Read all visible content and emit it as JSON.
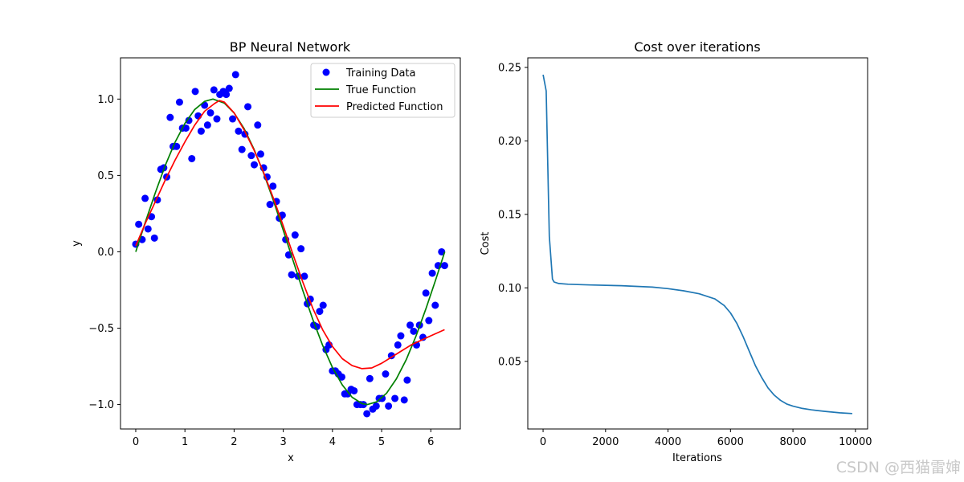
{
  "chart_data": [
    {
      "type": "scatter+line",
      "title": "BP Neural Network",
      "xlabel": "x",
      "ylabel": "y",
      "xlim": [
        -0.31,
        6.6
      ],
      "ylim": [
        -1.16,
        1.27
      ],
      "xticks": [
        0,
        1,
        2,
        3,
        4,
        5,
        6
      ],
      "yticks": [
        -1.0,
        -0.5,
        0.0,
        0.5,
        1.0
      ],
      "ytick_labels": [
        "−1.0",
        "−0.5",
        "0.0",
        "0.5",
        "1.0"
      ],
      "legend": {
        "position": "top-right",
        "entries": [
          "Training Data",
          "True Function",
          "Predicted Function"
        ]
      },
      "series": [
        {
          "name": "Training Data",
          "kind": "scatter",
          "color": "#0000ff",
          "points": [
            [
              0.0,
              0.05
            ],
            [
              0.06,
              0.18
            ],
            [
              0.13,
              0.08
            ],
            [
              0.19,
              0.35
            ],
            [
              0.25,
              0.15
            ],
            [
              0.32,
              0.23
            ],
            [
              0.38,
              0.09
            ],
            [
              0.44,
              0.34
            ],
            [
              0.51,
              0.54
            ],
            [
              0.57,
              0.55
            ],
            [
              0.63,
              0.49
            ],
            [
              0.7,
              0.88
            ],
            [
              0.76,
              0.69
            ],
            [
              0.83,
              0.69
            ],
            [
              0.89,
              0.98
            ],
            [
              0.95,
              0.81
            ],
            [
              1.02,
              0.81
            ],
            [
              1.08,
              0.86
            ],
            [
              1.14,
              0.61
            ],
            [
              1.21,
              1.05
            ],
            [
              1.27,
              0.89
            ],
            [
              1.33,
              0.79
            ],
            [
              1.4,
              0.96
            ],
            [
              1.46,
              0.83
            ],
            [
              1.52,
              0.91
            ],
            [
              1.59,
              1.06
            ],
            [
              1.65,
              0.87
            ],
            [
              1.71,
              1.03
            ],
            [
              1.78,
              1.05
            ],
            [
              1.84,
              1.03
            ],
            [
              1.9,
              1.07
            ],
            [
              1.97,
              0.87
            ],
            [
              2.03,
              1.16
            ],
            [
              2.09,
              0.79
            ],
            [
              2.16,
              0.67
            ],
            [
              2.22,
              0.77
            ],
            [
              2.28,
              0.95
            ],
            [
              2.35,
              0.63
            ],
            [
              2.41,
              0.57
            ],
            [
              2.48,
              0.83
            ],
            [
              2.54,
              0.64
            ],
            [
              2.6,
              0.55
            ],
            [
              2.67,
              0.49
            ],
            [
              2.73,
              0.31
            ],
            [
              2.79,
              0.43
            ],
            [
              2.86,
              0.33
            ],
            [
              2.92,
              0.22
            ],
            [
              2.98,
              0.24
            ],
            [
              3.05,
              0.08
            ],
            [
              3.11,
              -0.02
            ],
            [
              3.17,
              -0.15
            ],
            [
              3.24,
              0.11
            ],
            [
              3.3,
              -0.16
            ],
            [
              3.36,
              0.02
            ],
            [
              3.43,
              -0.16
            ],
            [
              3.49,
              -0.34
            ],
            [
              3.55,
              -0.31
            ],
            [
              3.62,
              -0.48
            ],
            [
              3.68,
              -0.49
            ],
            [
              3.74,
              -0.39
            ],
            [
              3.81,
              -0.35
            ],
            [
              3.87,
              -0.64
            ],
            [
              3.93,
              -0.61
            ],
            [
              4.0,
              -0.78
            ],
            [
              4.06,
              -0.78
            ],
            [
              4.12,
              -0.8
            ],
            [
              4.19,
              -0.82
            ],
            [
              4.25,
              -0.93
            ],
            [
              4.31,
              -0.93
            ],
            [
              4.38,
              -0.9
            ],
            [
              4.44,
              -0.91
            ],
            [
              4.5,
              -1.0
            ],
            [
              4.57,
              -1.0
            ],
            [
              4.63,
              -1.0
            ],
            [
              4.7,
              -1.06
            ],
            [
              4.76,
              -0.83
            ],
            [
              4.82,
              -1.03
            ],
            [
              4.89,
              -1.01
            ],
            [
              4.95,
              -0.96
            ],
            [
              5.01,
              -0.96
            ],
            [
              5.08,
              -0.8
            ],
            [
              5.14,
              -1.01
            ],
            [
              5.2,
              -0.68
            ],
            [
              5.27,
              -0.96
            ],
            [
              5.33,
              -0.61
            ],
            [
              5.39,
              -0.55
            ],
            [
              5.46,
              -0.97
            ],
            [
              5.52,
              -0.84
            ],
            [
              5.58,
              -0.48
            ],
            [
              5.65,
              -0.52
            ],
            [
              5.71,
              -0.61
            ],
            [
              5.77,
              -0.48
            ],
            [
              5.84,
              -0.56
            ],
            [
              5.9,
              -0.27
            ],
            [
              5.96,
              -0.45
            ],
            [
              6.03,
              -0.14
            ],
            [
              6.09,
              -0.35
            ],
            [
              6.15,
              -0.09
            ],
            [
              6.22,
              0.0
            ],
            [
              6.28,
              -0.09
            ]
          ]
        },
        {
          "name": "True Function",
          "kind": "line",
          "color": "#008000",
          "x": [
            0,
            0.2,
            0.4,
            0.6,
            0.8,
            1.0,
            1.2,
            1.4,
            1.571,
            1.8,
            2.0,
            2.2,
            2.4,
            2.6,
            2.8,
            3.0,
            3.142,
            3.4,
            3.6,
            3.8,
            4.0,
            4.2,
            4.4,
            4.6,
            4.712,
            4.9,
            5.1,
            5.3,
            5.5,
            5.7,
            5.9,
            6.1,
            6.283
          ],
          "y": [
            0,
            0.199,
            0.389,
            0.565,
            0.717,
            0.841,
            0.932,
            0.985,
            1.0,
            0.974,
            0.909,
            0.808,
            0.675,
            0.516,
            0.335,
            0.141,
            0.0,
            -0.256,
            -0.443,
            -0.612,
            -0.757,
            -0.872,
            -0.952,
            -0.994,
            -1.0,
            -0.982,
            -0.926,
            -0.832,
            -0.706,
            -0.551,
            -0.374,
            -0.182,
            0.0
          ]
        },
        {
          "name": "Predicted Function",
          "kind": "line",
          "color": "#ff0000",
          "x": [
            0,
            0.2,
            0.4,
            0.6,
            0.8,
            1.0,
            1.2,
            1.4,
            1.6,
            1.7,
            1.8,
            2.0,
            2.2,
            2.4,
            2.6,
            2.8,
            3.0,
            3.2,
            3.4,
            3.6,
            3.8,
            4.0,
            4.2,
            4.4,
            4.6,
            4.8,
            5.0,
            5.2,
            5.4,
            5.6,
            5.8,
            6.0,
            6.28
          ],
          "y": [
            0.04,
            0.19,
            0.33,
            0.47,
            0.6,
            0.72,
            0.83,
            0.92,
            0.97,
            0.99,
            0.98,
            0.91,
            0.8,
            0.67,
            0.52,
            0.35,
            0.17,
            -0.02,
            -0.2,
            -0.37,
            -0.51,
            -0.62,
            -0.7,
            -0.745,
            -0.765,
            -0.76,
            -0.73,
            -0.69,
            -0.65,
            -0.61,
            -0.58,
            -0.55,
            -0.51
          ]
        }
      ]
    },
    {
      "type": "line",
      "title": "Cost over iterations",
      "xlabel": "Iterations",
      "ylabel": "Cost",
      "xlim": [
        -490,
        10390
      ],
      "ylim": [
        0.004,
        0.2565
      ],
      "xticks": [
        0,
        2000,
        4000,
        6000,
        8000,
        10000
      ],
      "yticks": [
        0.05,
        0.1,
        0.15,
        0.2,
        0.25
      ],
      "ytick_labels": [
        "0.05",
        "0.10",
        "0.15",
        "0.20",
        "0.25"
      ],
      "series": [
        {
          "name": "Cost",
          "color": "#1f77b4",
          "x": [
            0,
            100,
            200,
            300,
            350,
            500,
            800,
            1500,
            2500,
            3500,
            4000,
            4500,
            5000,
            5500,
            5800,
            6000,
            6200,
            6400,
            6600,
            6800,
            7000,
            7200,
            7400,
            7600,
            7800,
            8000,
            8300,
            8600,
            9000,
            9500,
            9900
          ],
          "y": [
            0.245,
            0.234,
            0.135,
            0.106,
            0.104,
            0.103,
            0.1025,
            0.102,
            0.1015,
            0.1005,
            0.0995,
            0.098,
            0.096,
            0.0925,
            0.088,
            0.083,
            0.076,
            0.067,
            0.057,
            0.047,
            0.039,
            0.032,
            0.027,
            0.0235,
            0.021,
            0.0195,
            0.018,
            0.017,
            0.016,
            0.015,
            0.0145
          ]
        }
      ]
    }
  ],
  "watermark": "CSDN @西猫雷婶"
}
